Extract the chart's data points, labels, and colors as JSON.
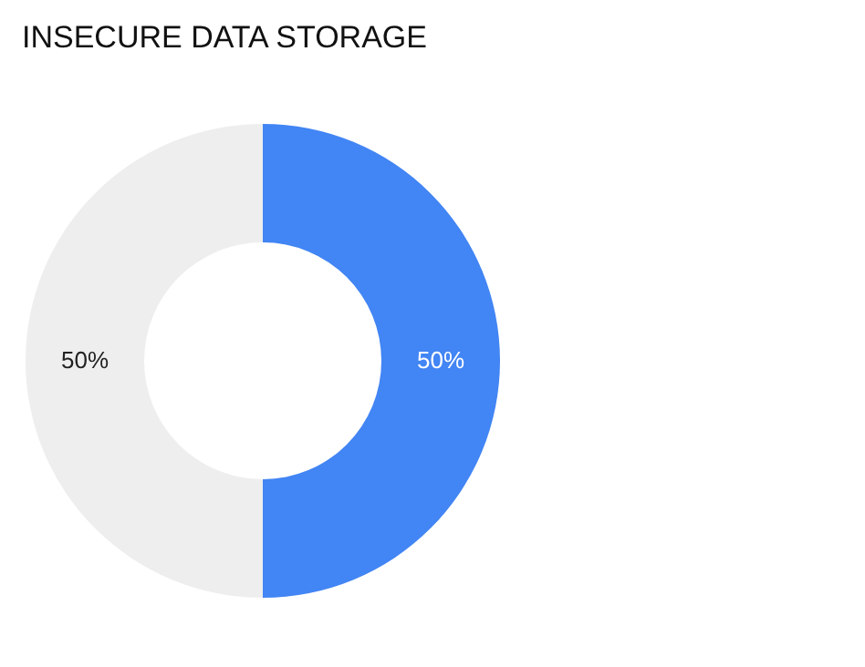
{
  "chart_data": {
    "type": "donut",
    "title": "INSECURE DATA STORAGE",
    "categories": [
      null,
      null
    ],
    "values": [
      50,
      50
    ],
    "colors": [
      "#4285f4",
      "#eeeeee"
    ],
    "value_labels": [
      "50%",
      "50%"
    ],
    "legend": false
  }
}
